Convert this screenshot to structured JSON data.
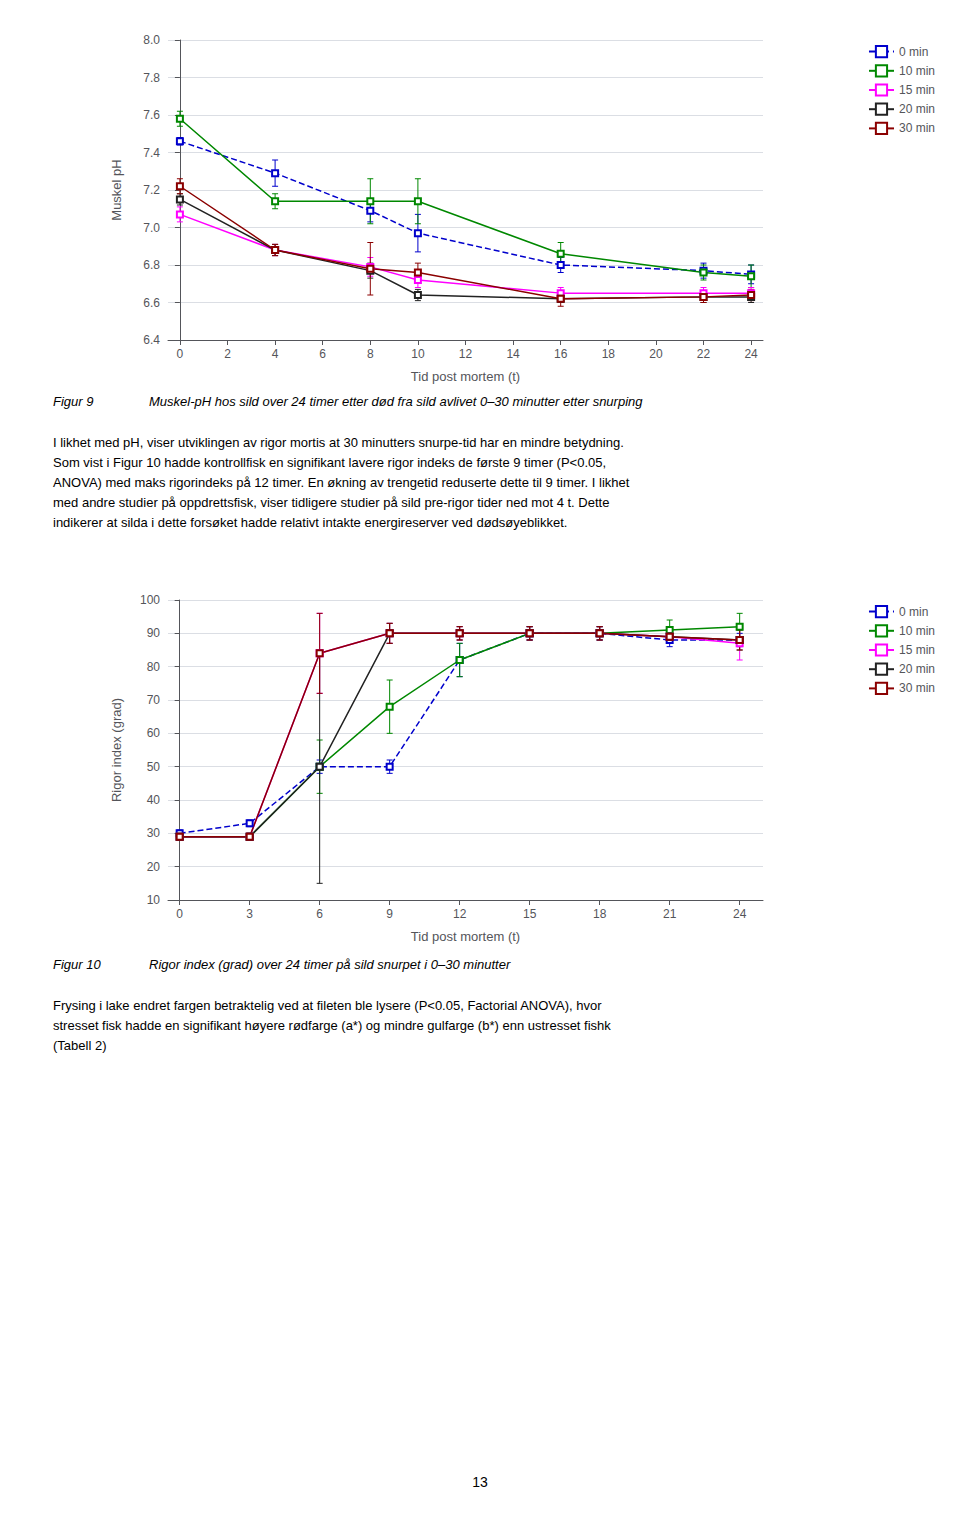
{
  "chart_data": [
    {
      "type": "line",
      "xlabel": "Tid post mortem (t)",
      "ylabel": "Muskel pH",
      "xlim": [
        -0.5,
        24.5
      ],
      "ylim": [
        6.4,
        8.0
      ],
      "xticks": [
        0,
        2,
        4,
        6,
        8,
        10,
        12,
        14,
        16,
        18,
        20,
        22,
        24
      ],
      "yticks": [
        6.4,
        6.6,
        6.8,
        {
          "value": 7,
          "label": "7.0"
        },
        7.2,
        7.4,
        7.6,
        7.8,
        {
          "value": 8,
          "label": "8.0"
        }
      ],
      "grid": true,
      "legend": "upper right",
      "marker": "square",
      "series": [
        {
          "name": "0 min",
          "color": "#0000cc",
          "line_style": "dashed",
          "x": [
            0,
            4,
            8,
            10,
            16,
            22,
            24
          ],
          "values": [
            7.46,
            7.29,
            7.09,
            6.97,
            6.8,
            6.77,
            6.75
          ],
          "errors": [
            0.02,
            0.07,
            0.06,
            0.1,
            0.04,
            0.04,
            0.05
          ]
        },
        {
          "name": "10 min",
          "color": "#008800",
          "line_style": "solid",
          "x": [
            0,
            4,
            8,
            10,
            16,
            22,
            24
          ],
          "values": [
            7.58,
            7.14,
            7.14,
            7.14,
            6.86,
            6.76,
            6.74
          ],
          "errors": [
            0.04,
            0.04,
            0.12,
            0.12,
            0.06,
            0.04,
            0.06
          ]
        },
        {
          "name": "15 min",
          "color": "#ff00ff",
          "line_style": "solid",
          "x": [
            0,
            4,
            8,
            10,
            16,
            22,
            24
          ],
          "values": [
            7.07,
            6.88,
            6.79,
            6.72,
            6.65,
            6.65,
            6.65
          ],
          "errors": [
            0.04,
            0.03,
            0.05,
            0.04,
            0.03,
            0.03,
            0.03
          ]
        },
        {
          "name": "20 min",
          "color": "#222222",
          "line_style": "solid",
          "x": [
            0,
            4,
            8,
            10,
            16,
            22,
            24
          ],
          "values": [
            7.15,
            6.88,
            6.77,
            6.64,
            6.62,
            6.63,
            6.63
          ],
          "errors": [
            0.03,
            0.03,
            0.04,
            0.03,
            0.02,
            0.03,
            0.03
          ]
        },
        {
          "name": "30 min",
          "color": "#8b0000",
          "line_style": "solid",
          "x": [
            0,
            4,
            8,
            10,
            16,
            22,
            24
          ],
          "values": [
            7.22,
            6.88,
            6.78,
            6.76,
            6.62,
            6.63,
            6.64
          ],
          "errors": [
            0.04,
            0.03,
            0.14,
            0.05,
            0.04,
            0.03,
            0.03
          ]
        }
      ],
      "annotations": [
        "Figur 9",
        "Muskel-pH hos sild over 24 timer etter død fra sild avlivet 0–30 minutter etter snurping",
        "I likhet med pH, viser utviklingen av rigor mortis at 30 minutters snurpe-tid har en mindre betydning.\nSom vist i Figur 10 hadde kontrollfisk en signifikant lavere rigor indeks de første 9 timer (P<0.05,\nANOVA) med maks rigorindeks på 12 timer. En økning av trengetid reduserte dette til 9 timer. I likhet\nmed andre studier på oppdrettsfisk, viser tidligere studier på sild pre-rigor tider ned mot 4 t. Dette\nindikerer at silda i dette forsøket hadde relativt intakte energireserver ved dødsøyeblikket."
      ]
    },
    {
      "type": "line",
      "xlabel": "Tid post mortem (t)",
      "ylabel": "Rigor index (grad)",
      "xlim": [
        -0.5,
        25
      ],
      "ylim": [
        10,
        100
      ],
      "xticks": [
        0,
        3,
        6,
        9,
        12,
        15,
        18,
        21,
        24
      ],
      "yticks": [
        10,
        20,
        30,
        40,
        50,
        60,
        70,
        80,
        90,
        100
      ],
      "grid": true,
      "legend": "upper right",
      "marker": "square",
      "series": [
        {
          "name": "0 min",
          "color": "#0000cc",
          "line_style": "dashed",
          "x": [
            0,
            3,
            6,
            9,
            12,
            15,
            18,
            21,
            24
          ],
          "values": [
            30,
            33,
            50,
            50,
            82,
            90,
            90,
            88,
            88
          ],
          "errors": [
            1,
            1,
            2,
            2,
            5,
            2,
            2,
            2,
            2
          ]
        },
        {
          "name": "10 min",
          "color": "#008800",
          "line_style": "solid",
          "x": [
            0,
            3,
            6,
            9,
            12,
            15,
            18,
            21,
            24
          ],
          "values": [
            29,
            29,
            50,
            68,
            82,
            90,
            90,
            91,
            92
          ],
          "errors": [
            1,
            1,
            8,
            8,
            5,
            2,
            2,
            3,
            4
          ]
        },
        {
          "name": "15 min",
          "color": "#ff00ff",
          "line_style": "solid",
          "x": [
            0,
            3,
            6,
            9,
            12,
            15,
            18,
            21,
            24
          ],
          "values": [
            29,
            29,
            84,
            90,
            90,
            90,
            90,
            89,
            87
          ],
          "errors": [
            1,
            1,
            12,
            3,
            2,
            2,
            2,
            2,
            5
          ]
        },
        {
          "name": "20 min",
          "color": "#222222",
          "line_style": "solid",
          "x": [
            0,
            3,
            6,
            9,
            12,
            15,
            18,
            21,
            24
          ],
          "values": [
            29,
            29,
            50,
            90,
            90,
            90,
            90,
            89,
            88
          ],
          "errors": [
            1,
            1,
            35,
            3,
            2,
            2,
            2,
            2,
            3
          ]
        },
        {
          "name": "30 min",
          "color": "#8b0000",
          "line_style": "solid",
          "x": [
            0,
            3,
            6,
            9,
            12,
            15,
            18,
            21,
            24
          ],
          "values": [
            29,
            29,
            84,
            90,
            90,
            90,
            90,
            89,
            88
          ],
          "errors": [
            1,
            1,
            12,
            3,
            2,
            2,
            2,
            2,
            3
          ]
        }
      ],
      "annotations": [
        "Figur 10",
        "Rigor index (grad) over 24 timer på sild snurpet i 0–30 minutter",
        "Frysing i lake endret fargen betraktelig ved at fileten ble lysere (P<0.05, Factorial ANOVA), hvor\nstresset fisk hadde en signifikant høyere rødfarge (a*) og mindre gulfarge (b*) enn ustresset fishk\n(Tabell 2)"
      ]
    }
  ],
  "page_number": "13"
}
